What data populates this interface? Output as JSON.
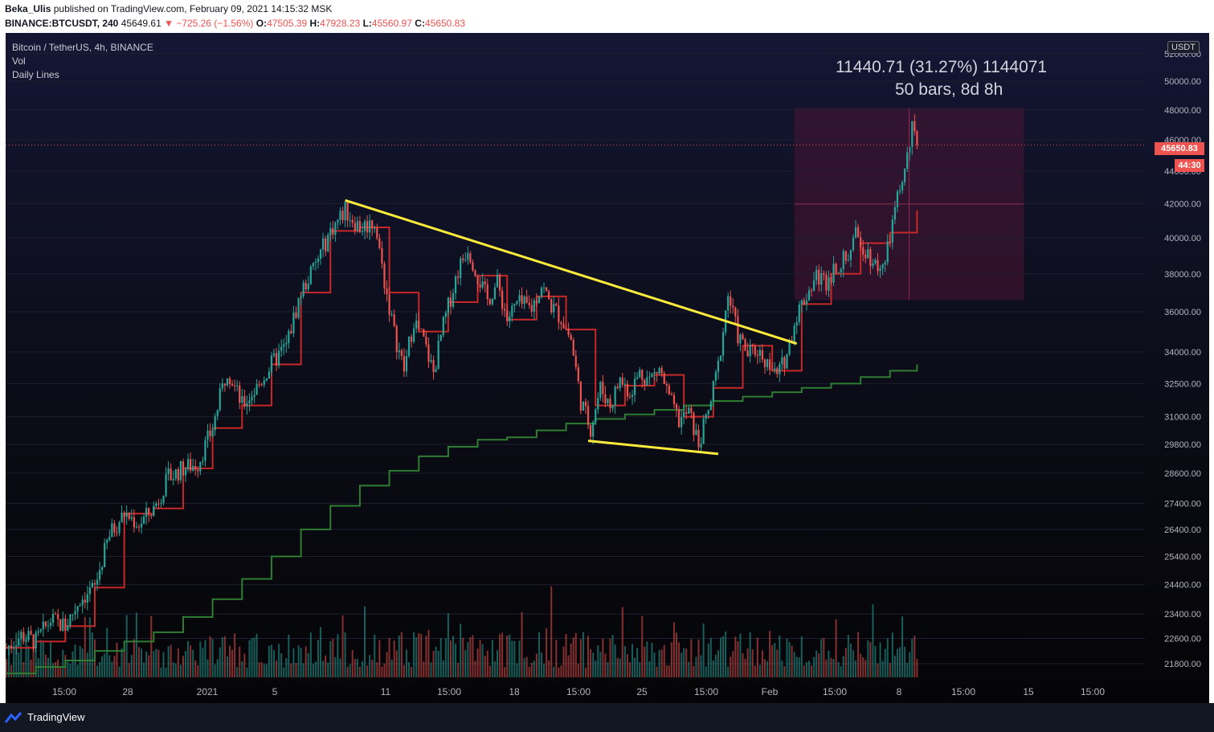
{
  "header": {
    "author": "Beka_Ulis",
    "published_text": "published on TradingView.com, February 09, 2021 14:15:32 MSK",
    "symbol_line": "BINANCE:BTCUSDT, 240",
    "last": "45649.61",
    "change": "▼ −725.26 (−1.56%)",
    "o_label": "O:",
    "o_value": "47505.39",
    "h_label": "H:",
    "h_value": "47928.23",
    "l_label": "L:",
    "l_value": "45560.97",
    "c_label": "C:",
    "c_value": "45650.83"
  },
  "legend": {
    "title": "Bitcoin / TetherUS, 4h, BINANCE",
    "vol": "Vol",
    "daily": "Daily Lines"
  },
  "measure": {
    "line1": "11440.71 (31.27%) 1144071",
    "line2": "50 bars, 8d 8h"
  },
  "price_axis": {
    "currency": "USDT",
    "last_price_label": "45650.83",
    "countdown": "44:30"
  },
  "footer": {
    "brand": "TradingView"
  },
  "colors": {
    "up": "#26a69a",
    "down": "#ef5350",
    "trendline": "#ffeb3b",
    "red_line": "#c62828",
    "green_line": "#2e7d32",
    "measure_box": "#4a1433"
  },
  "chart_data": {
    "type": "candlestick",
    "ylim": [
      20800,
      53200
    ],
    "y_ticks": [
      52000,
      50000,
      48000,
      46000,
      44000,
      42000,
      40000,
      38000,
      36000,
      34000,
      32500,
      31000,
      29800,
      28600,
      27400,
      26400,
      25400,
      24400,
      23400,
      22600,
      21800
    ],
    "y_tick_labels": [
      "52000.00",
      "50000.00",
      "48000.00",
      "46000.00",
      "44000.00",
      "42000.00",
      "40000.00",
      "38000.00",
      "36000.00",
      "34000.00",
      "32500.00",
      "31000.00",
      "29800.00",
      "28600.00",
      "27400.00",
      "26400.00",
      "25400.00",
      "24400.00",
      "23400.00",
      "22600.00",
      "21800.00"
    ],
    "x_tick_labels": [
      "15:00",
      "28",
      "2021",
      "5",
      "11",
      "15:00",
      "18",
      "15:00",
      "25",
      "15:00",
      "Feb",
      "15:00",
      "8",
      "15:00",
      "15",
      "15:00"
    ],
    "close_path": [
      [
        0,
        22300
      ],
      [
        6,
        22700
      ],
      [
        12,
        22500
      ],
      [
        18,
        23200
      ],
      [
        24,
        23000
      ],
      [
        30,
        23900
      ],
      [
        36,
        24300
      ],
      [
        42,
        26200
      ],
      [
        48,
        27000
      ],
      [
        54,
        26600
      ],
      [
        60,
        27200
      ],
      [
        66,
        28400
      ],
      [
        72,
        28800
      ],
      [
        78,
        29000
      ],
      [
        84,
        30500
      ],
      [
        90,
        33200
      ],
      [
        96,
        31500
      ],
      [
        102,
        32300
      ],
      [
        108,
        33400
      ],
      [
        114,
        34300
      ],
      [
        120,
        37000
      ],
      [
        126,
        38500
      ],
      [
        132,
        40400
      ],
      [
        138,
        41600
      ],
      [
        144,
        40600
      ],
      [
        150,
        40900
      ],
      [
        154,
        37600
      ],
      [
        158,
        34900
      ],
      [
        162,
        33100
      ],
      [
        166,
        35600
      ],
      [
        170,
        34500
      ],
      [
        174,
        33000
      ],
      [
        178,
        35300
      ],
      [
        184,
        38200
      ],
      [
        188,
        39500
      ],
      [
        192,
        37900
      ],
      [
        196,
        36600
      ],
      [
        200,
        37500
      ],
      [
        204,
        35600
      ],
      [
        208,
        36400
      ],
      [
        214,
        36200
      ],
      [
        218,
        37400
      ],
      [
        222,
        36300
      ],
      [
        226,
        35700
      ],
      [
        230,
        34600
      ],
      [
        234,
        31700
      ],
      [
        238,
        30500
      ],
      [
        242,
        32300
      ],
      [
        246,
        31500
      ],
      [
        250,
        32700
      ],
      [
        254,
        32100
      ],
      [
        258,
        33000
      ],
      [
        262,
        32700
      ],
      [
        266,
        33200
      ],
      [
        270,
        31800
      ],
      [
        274,
        30800
      ],
      [
        278,
        31200
      ],
      [
        282,
        29800
      ],
      [
        286,
        31200
      ],
      [
        290,
        33300
      ],
      [
        294,
        36900
      ],
      [
        298,
        34800
      ],
      [
        302,
        33900
      ],
      [
        306,
        34100
      ],
      [
        310,
        33500
      ],
      [
        314,
        32800
      ],
      [
        318,
        33900
      ],
      [
        322,
        35900
      ],
      [
        326,
        36900
      ],
      [
        330,
        37900
      ],
      [
        334,
        37600
      ],
      [
        338,
        38500
      ],
      [
        342,
        38800
      ],
      [
        346,
        40100
      ],
      [
        350,
        39400
      ],
      [
        354,
        38500
      ],
      [
        358,
        38500
      ],
      [
        362,
        41600
      ],
      [
        366,
        44000
      ],
      [
        369,
        46600
      ],
      [
        371,
        45650
      ]
    ],
    "daily_line_red": [
      [
        0,
        22300
      ],
      [
        12,
        22500
      ],
      [
        24,
        23000
      ],
      [
        36,
        24300
      ],
      [
        48,
        27000
      ],
      [
        60,
        27200
      ],
      [
        72,
        28800
      ],
      [
        84,
        30500
      ],
      [
        96,
        31500
      ],
      [
        108,
        33400
      ],
      [
        120,
        37000
      ],
      [
        132,
        40400
      ],
      [
        144,
        40600
      ],
      [
        156,
        37000
      ],
      [
        168,
        35000
      ],
      [
        180,
        36500
      ],
      [
        192,
        37900
      ],
      [
        204,
        35600
      ],
      [
        216,
        36800
      ],
      [
        228,
        35100
      ],
      [
        240,
        31500
      ],
      [
        252,
        32400
      ],
      [
        264,
        32900
      ],
      [
        276,
        31000
      ],
      [
        288,
        32300
      ],
      [
        300,
        34300
      ],
      [
        312,
        33100
      ],
      [
        324,
        36400
      ],
      [
        336,
        38000
      ],
      [
        348,
        39700
      ],
      [
        360,
        40300
      ],
      [
        371,
        41600
      ]
    ],
    "daily_line_green": [
      [
        0,
        21500
      ],
      [
        12,
        21700
      ],
      [
        24,
        21900
      ],
      [
        36,
        22200
      ],
      [
        48,
        22500
      ],
      [
        60,
        22800
      ],
      [
        72,
        23300
      ],
      [
        84,
        23900
      ],
      [
        96,
        24600
      ],
      [
        108,
        25400
      ],
      [
        120,
        26400
      ],
      [
        132,
        27300
      ],
      [
        144,
        28100
      ],
      [
        156,
        28700
      ],
      [
        168,
        29300
      ],
      [
        180,
        29700
      ],
      [
        192,
        30000
      ],
      [
        204,
        30100
      ],
      [
        216,
        30400
      ],
      [
        228,
        30700
      ],
      [
        240,
        30900
      ],
      [
        252,
        31100
      ],
      [
        264,
        31300
      ],
      [
        276,
        31500
      ],
      [
        288,
        31700
      ],
      [
        300,
        31900
      ],
      [
        312,
        32100
      ],
      [
        324,
        32300
      ],
      [
        336,
        32500
      ],
      [
        348,
        32800
      ],
      [
        360,
        33100
      ],
      [
        371,
        33400
      ]
    ],
    "trendlines": [
      {
        "from": [
          138,
          42200
        ],
        "to": [
          322,
          34400
        ]
      },
      {
        "from": [
          237,
          29950
        ],
        "to": [
          290,
          29400
        ]
      }
    ],
    "measure_box": {
      "from_bar": 321,
      "to_bar": 371,
      "low": 36600,
      "high": 48150
    }
  }
}
